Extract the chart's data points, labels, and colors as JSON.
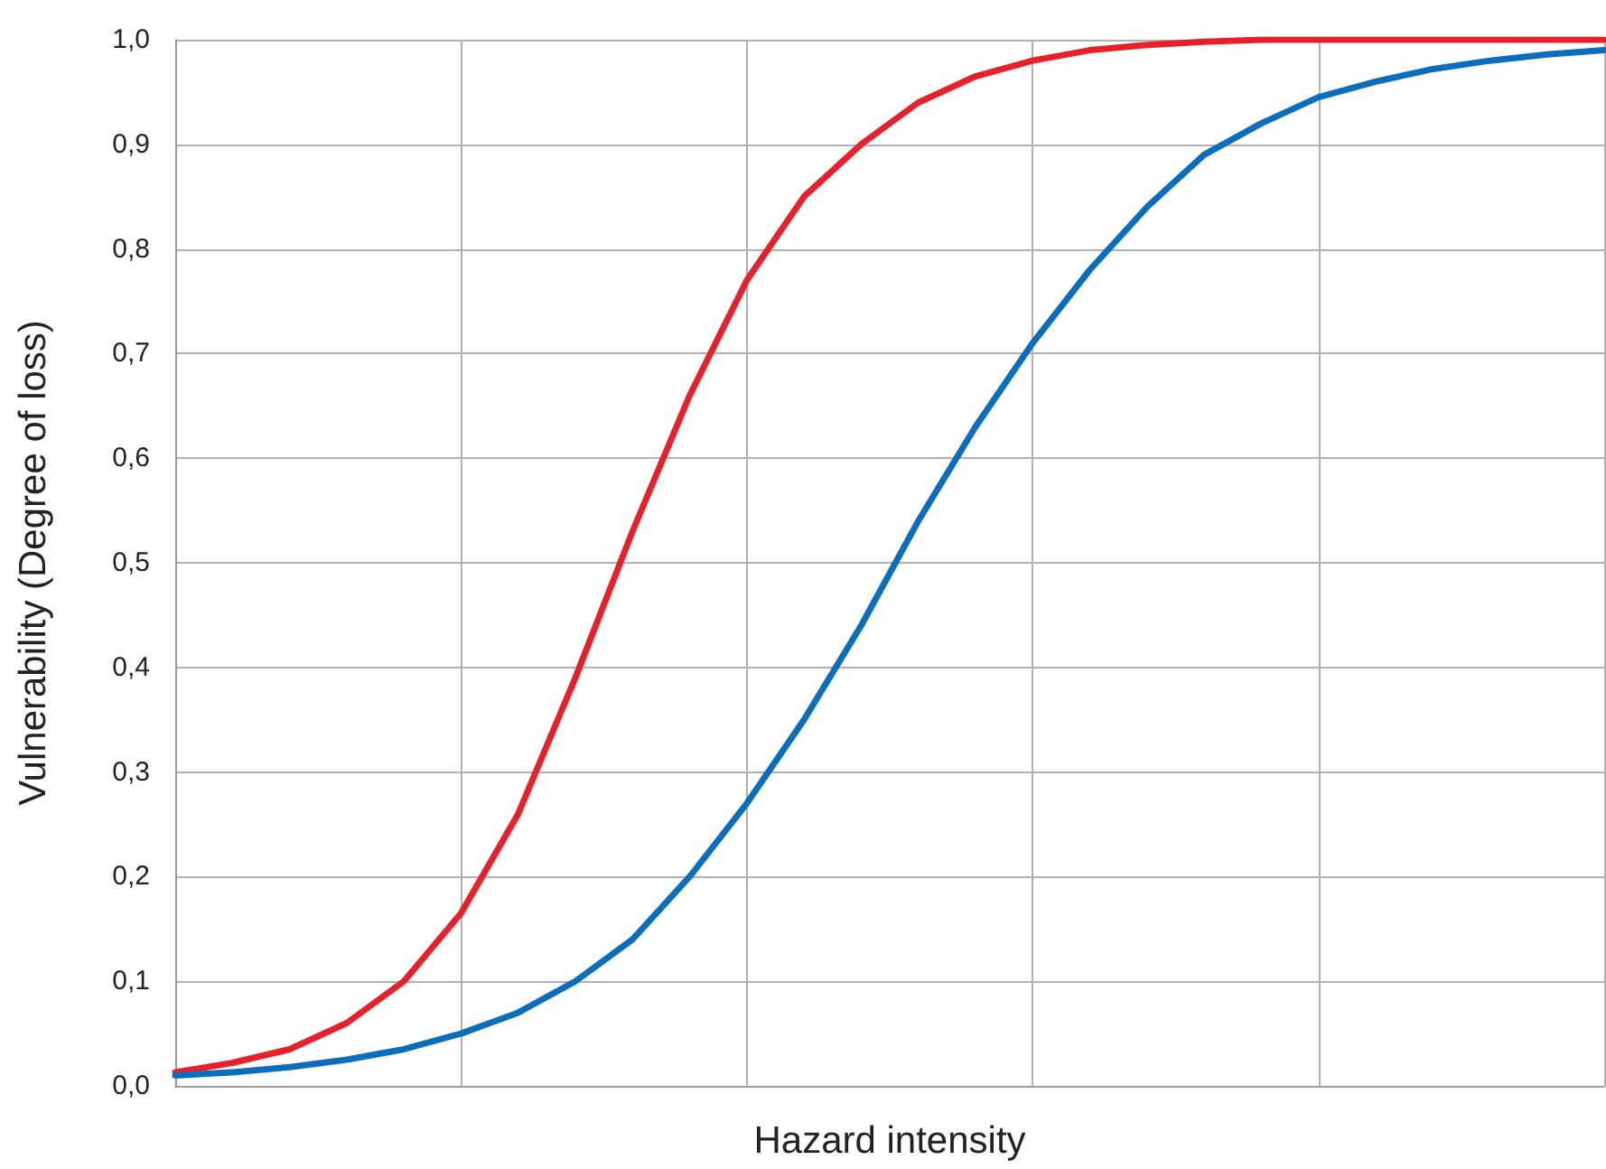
{
  "chart_data": {
    "type": "line",
    "xlabel": "Hazard intensity",
    "ylabel": "Vulnerability (Degree of loss)",
    "categories": [
      null,
      null,
      null,
      null,
      null,
      null,
      null,
      null,
      null,
      null,
      null,
      null,
      null,
      null,
      null,
      null,
      null,
      null,
      null,
      null,
      null,
      null,
      null,
      null,
      null,
      null
    ],
    "ylim": [
      0,
      1
    ],
    "yticks": [
      {
        "value": 0,
        "label": "0,0"
      },
      {
        "value": 0.1,
        "label": "0,1"
      },
      {
        "value": 0.2,
        "label": "0,2"
      },
      {
        "value": 0.3,
        "label": "0,3"
      },
      {
        "value": 0.4,
        "label": "0,4"
      },
      {
        "value": 0.5,
        "label": "0,5"
      },
      {
        "value": 0.6,
        "label": "0,6"
      },
      {
        "value": 0.7,
        "label": "0,7"
      },
      {
        "value": 0.8,
        "label": "0,8"
      },
      {
        "value": 0.9,
        "label": "0,9"
      },
      {
        "value": 1,
        "label": "1,0"
      }
    ],
    "tick_labels": "y",
    "grid": true,
    "marker": "none",
    "line_style": "solid",
    "series": [
      {
        "color": "#e8202a",
        "values": [
          0.013,
          0.022,
          0.035,
          0.06,
          0.1,
          0.165,
          0.26,
          0.39,
          0.53,
          0.66,
          0.77,
          0.85,
          0.9,
          0.94,
          0.965,
          0.98,
          0.99,
          0.995,
          0.998,
          1.0,
          1.0,
          1.0,
          1.0,
          1.0,
          1.0,
          1.0
        ]
      },
      {
        "color": "#0a6ebd",
        "values": [
          0.01,
          0.013,
          0.018,
          0.025,
          0.035,
          0.05,
          0.07,
          0.1,
          0.14,
          0.2,
          0.27,
          0.35,
          0.44,
          0.54,
          0.63,
          0.71,
          0.78,
          0.84,
          0.89,
          0.92,
          0.945,
          0.96,
          0.972,
          0.98,
          0.986,
          0.99
        ]
      }
    ]
  }
}
